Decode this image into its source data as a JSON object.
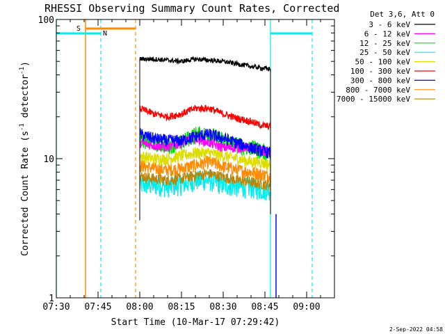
{
  "chart_data": {
    "type": "line",
    "title": "RHESSI Observing Summary Count Rates, Corrected",
    "xlabel": "Start Time (10-Mar-17 07:29:42)",
    "ylabel": "Corrected Count Rate (s⁻¹ detector⁻¹)",
    "ylabel_main": "Corrected Count Rate (s",
    "ylabel_sup1": "-1",
    "ylabel_mid": " detector",
    "ylabel_sup2": "-1",
    "ylabel_end": ")",
    "yscale": "log",
    "ylim": [
      1,
      100
    ],
    "yticks": [
      {
        "value": 1,
        "label": "1"
      },
      {
        "value": 10,
        "label": "10"
      },
      {
        "value": 100,
        "label": "100"
      }
    ],
    "xlim_minutes": [
      0,
      100
    ],
    "xticks": [
      {
        "value": 0,
        "label": "07:30"
      },
      {
        "value": 15,
        "label": "07:45"
      },
      {
        "value": 30,
        "label": "08:00"
      },
      {
        "value": 45,
        "label": "08:15"
      },
      {
        "value": 60,
        "label": "08:30"
      },
      {
        "value": 75,
        "label": "08:45"
      },
      {
        "value": 90,
        "label": "09:00"
      }
    ],
    "legend_title": "Det 3,6, Att 0",
    "legend_position": "top-right-outside",
    "series": [
      {
        "name": "3 - 6 keV",
        "color": "#000000",
        "x": [
          30,
          35,
          40,
          45,
          50,
          55,
          60,
          65,
          70,
          73,
          77
        ],
        "y": [
          52,
          52,
          51,
          50,
          52,
          51,
          50,
          48,
          46,
          45,
          44
        ]
      },
      {
        "name": "6 - 12 keV",
        "color": "#ff00ff",
        "x": [
          30,
          35,
          40,
          45,
          50,
          55,
          60,
          65,
          70,
          73,
          77
        ],
        "y": [
          13,
          12.5,
          12,
          13,
          14,
          13,
          12,
          12,
          12,
          11.5,
          11
        ]
      },
      {
        "name": "12 - 25 keV",
        "color": "#00dd00",
        "x": [
          30,
          35,
          40,
          45,
          50,
          55,
          60,
          65,
          70,
          73,
          77
        ],
        "y": [
          14,
          13,
          12.5,
          13,
          15,
          15,
          13.5,
          12.5,
          12,
          11.5,
          11
        ]
      },
      {
        "name": "25 - 50 keV",
        "color": "#00eeee",
        "x": [
          30,
          35,
          40,
          45,
          50,
          55,
          60,
          65,
          70,
          73,
          77
        ],
        "y": [
          6.5,
          6.5,
          6.3,
          6.5,
          7,
          7,
          6.5,
          6.3,
          6.2,
          6,
          6
        ]
      },
      {
        "name": "50 - 100 keV",
        "color": "#dddd00",
        "x": [
          30,
          35,
          40,
          45,
          50,
          55,
          60,
          65,
          70,
          73,
          77
        ],
        "y": [
          10.5,
          10,
          10,
          10.5,
          11,
          11,
          10.5,
          10,
          9.5,
          9.5,
          9
        ]
      },
      {
        "name": "100 - 300 keV",
        "color": "#ff0000",
        "x": [
          30,
          35,
          40,
          45,
          50,
          55,
          60,
          65,
          70,
          73,
          77
        ],
        "y": [
          23,
          21,
          20,
          21,
          23,
          23,
          21,
          19.5,
          18.5,
          17.5,
          17
        ]
      },
      {
        "name": "300 - 800 keV",
        "color": "#0000ff",
        "x": [
          30,
          35,
          40,
          45,
          50,
          55,
          60,
          65,
          70,
          73,
          77
        ],
        "y": [
          15,
          14,
          13.5,
          13.5,
          14.5,
          15,
          14,
          13,
          12,
          11.5,
          11
        ]
      },
      {
        "name": "800 - 7000 keV",
        "color": "#ff8c00",
        "x": [
          30,
          35,
          40,
          45,
          50,
          55,
          60,
          65,
          70,
          73,
          77
        ],
        "y": [
          9,
          8.5,
          8.3,
          8.5,
          9,
          9.5,
          8.8,
          8.3,
          8,
          7.8,
          7.5
        ]
      },
      {
        "name": "7000 - 15000 keV",
        "color": "#b8860b",
        "x": [
          30,
          35,
          40,
          45,
          50,
          55,
          60,
          65,
          70,
          73,
          77
        ],
        "y": [
          7.5,
          7.2,
          7,
          7.2,
          7.6,
          7.8,
          7.4,
          7,
          6.8,
          6.6,
          6.5
        ]
      }
    ],
    "markers": {
      "saa_label": "S",
      "night_label": "N",
      "cyan_solid_x": [
        0,
        77
      ],
      "cyan_dashed_x": [
        16,
        92
      ],
      "orange_solid_x": [
        10.5
      ],
      "orange_dashed_x": [
        28.5
      ],
      "cyan_bar_ranges": [
        [
          0,
          16
        ],
        [
          77,
          92
        ]
      ],
      "orange_bar_range": [
        10.5,
        28.5
      ],
      "blue_solid_x": [
        79
      ]
    },
    "colors": {
      "cyan": "#00eeee",
      "orange": "#ff8c00",
      "blue": "#0000ff"
    }
  },
  "footer": {
    "date_stamp": "2-Sep-2022 04:58"
  }
}
